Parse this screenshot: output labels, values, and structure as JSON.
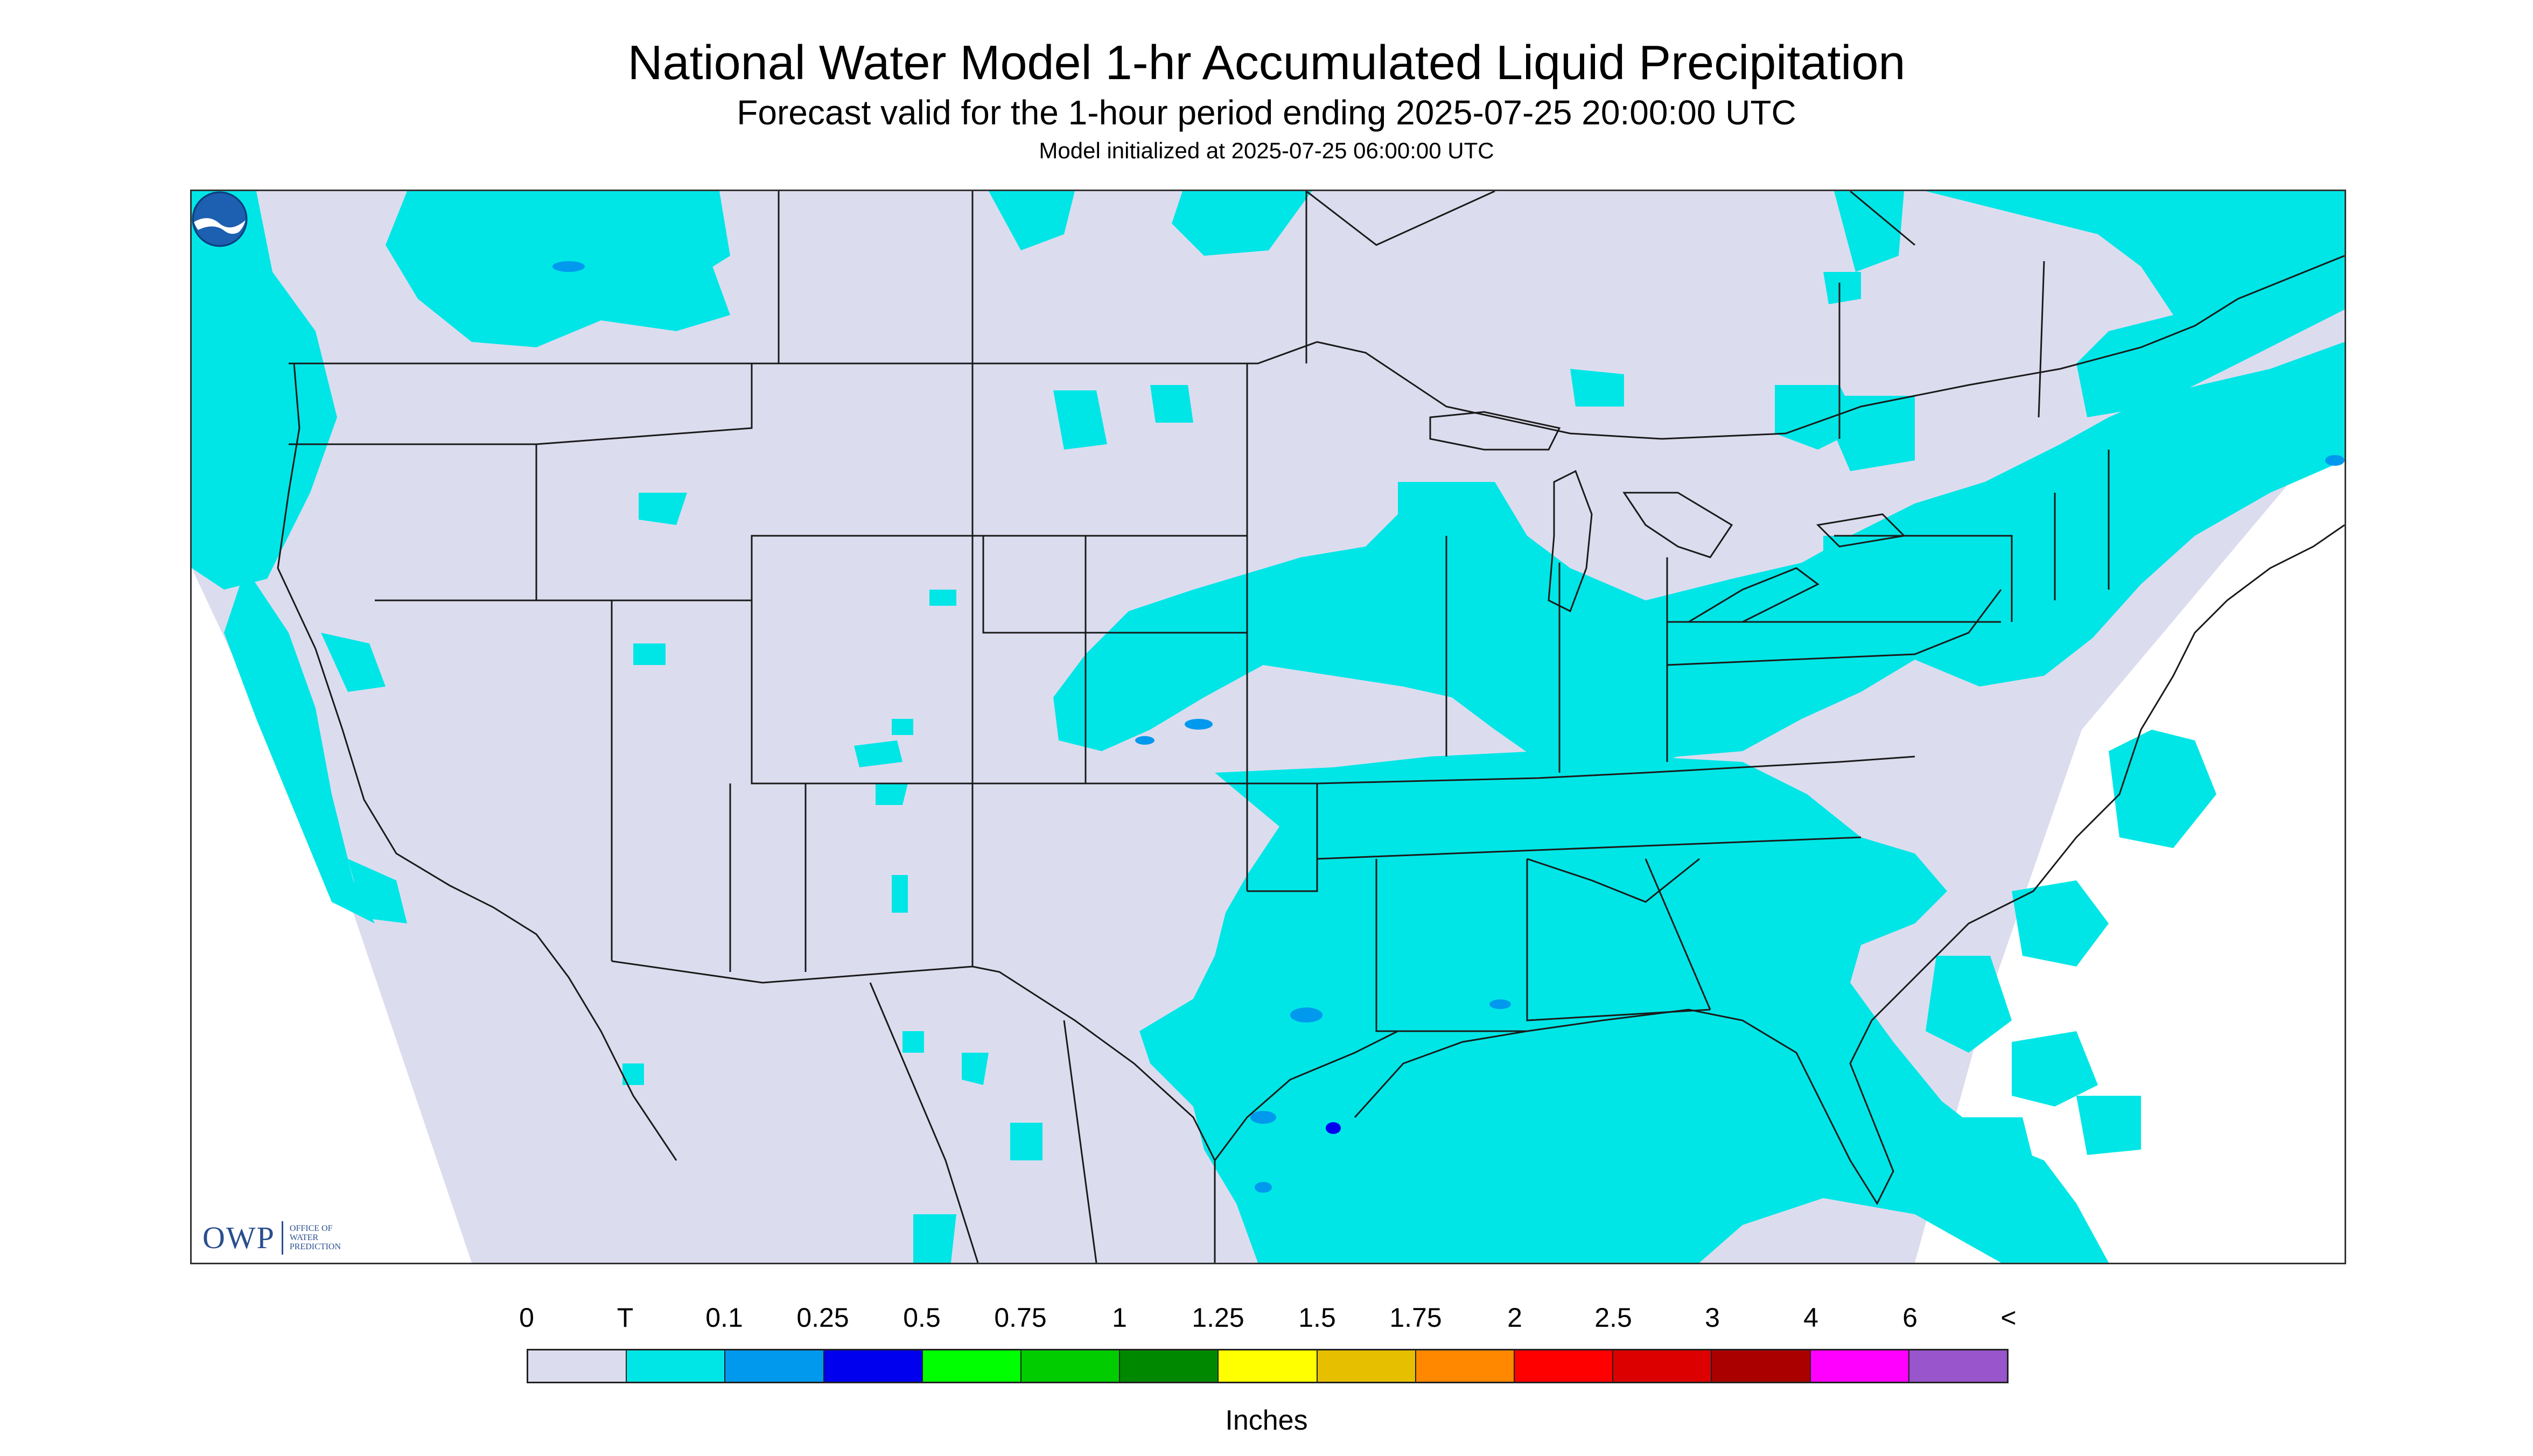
{
  "header": {
    "title": "National Water Model 1-hr Accumulated Liquid Precipitation",
    "subtitle": "Forecast valid for the 1-hour period ending 2025-07-25 20:00:00 UTC",
    "init": "Model initialized at 2025-07-25 06:00:00 UTC"
  },
  "logos": {
    "owp_mark": "OWP",
    "owp_line1": "OFFICE OF",
    "owp_line2": "WATER",
    "owp_line3": "PREDICTION",
    "noaa": "NOAA"
  },
  "legend": {
    "labels": [
      "0",
      "T",
      "0.1",
      "0.25",
      "0.5",
      "0.75",
      "1",
      "1.25",
      "1.5",
      "1.75",
      "2",
      "2.5",
      "3",
      "4",
      "6",
      "<"
    ],
    "colors": [
      "#dcdcef",
      "#00e6e6",
      "#0099ee",
      "#0000ee",
      "#00ff00",
      "#00cc00",
      "#008800",
      "#ffff00",
      "#e6bf00",
      "#ff8800",
      "#ff0000",
      "#dd0000",
      "#aa0000",
      "#ff00ff",
      "#9955cc"
    ],
    "units": "Inches"
  },
  "map": {
    "no_precip_color": "#dcdcef",
    "trace_color": "#00e6e6",
    "light_color": "#0099ee",
    "heavy_color": "#0000ee",
    "boundary_color": "#1a1a1a"
  }
}
